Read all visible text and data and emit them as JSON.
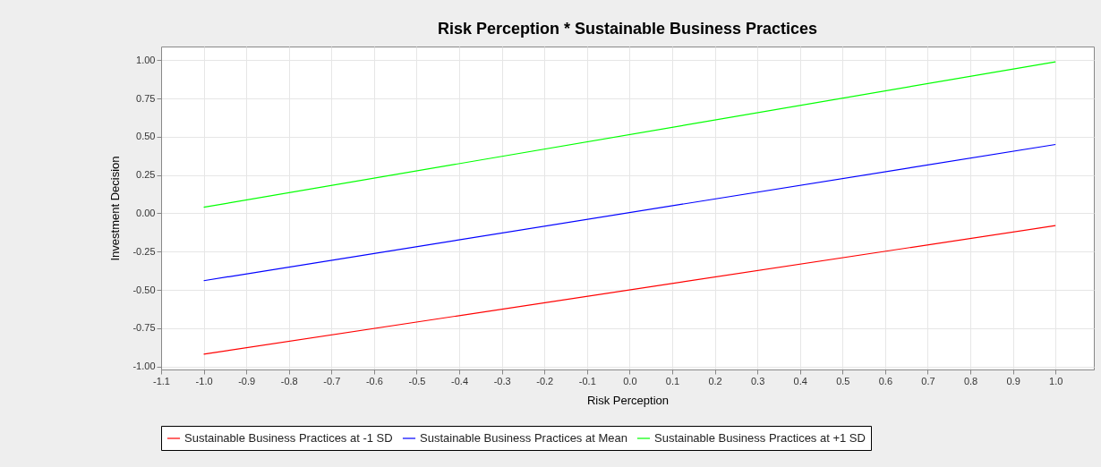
{
  "chart_data": {
    "type": "line",
    "title": "Risk Perception * Sustainable Business Practices",
    "xlabel": "Risk Perception",
    "ylabel": "Investment Decision",
    "x": [
      -1.0,
      1.0
    ],
    "series": [
      {
        "name": "Sustainable Business Practices at -1 SD",
        "color": "#ff0000",
        "values": [
          -0.92,
          -0.08
        ]
      },
      {
        "name": "Sustainable Business Practices at Mean",
        "color": "#0000ff",
        "values": [
          -0.44,
          0.45
        ]
      },
      {
        "name": "Sustainable Business Practices at +1 SD",
        "color": "#00ff00",
        "values": [
          0.04,
          0.99
        ]
      }
    ],
    "xlim": [
      -1.1,
      1.09
    ],
    "ylim": [
      -1.02,
      1.09
    ],
    "xticks": [
      -1.1,
      {
        "value": -1.0,
        "label": "-1.0"
      },
      -0.9,
      -0.8,
      -0.7,
      -0.6,
      -0.5,
      -0.4,
      -0.3,
      -0.2,
      -0.1,
      {
        "value": 0,
        "label": "0.0"
      },
      0.1,
      0.2,
      0.3,
      0.4,
      0.5,
      0.6,
      0.7,
      0.8,
      0.9,
      {
        "value": 1.0,
        "label": "1.0"
      }
    ],
    "yticks": [
      {
        "value": -1.0,
        "label": "-1.00"
      },
      {
        "value": -0.75,
        "label": "-0.75"
      },
      {
        "value": -0.5,
        "label": "-0.50"
      },
      {
        "value": -0.25,
        "label": "-0.25"
      },
      {
        "value": 0,
        "label": "0.00"
      },
      {
        "value": 0.25,
        "label": "0.25"
      },
      {
        "value": 0.5,
        "label": "0.50"
      },
      {
        "value": 0.75,
        "label": "0.75"
      },
      {
        "value": 1.0,
        "label": "1.00"
      }
    ],
    "grid": true,
    "legend": "bottom",
    "marker": "none",
    "line_style": "solid"
  }
}
